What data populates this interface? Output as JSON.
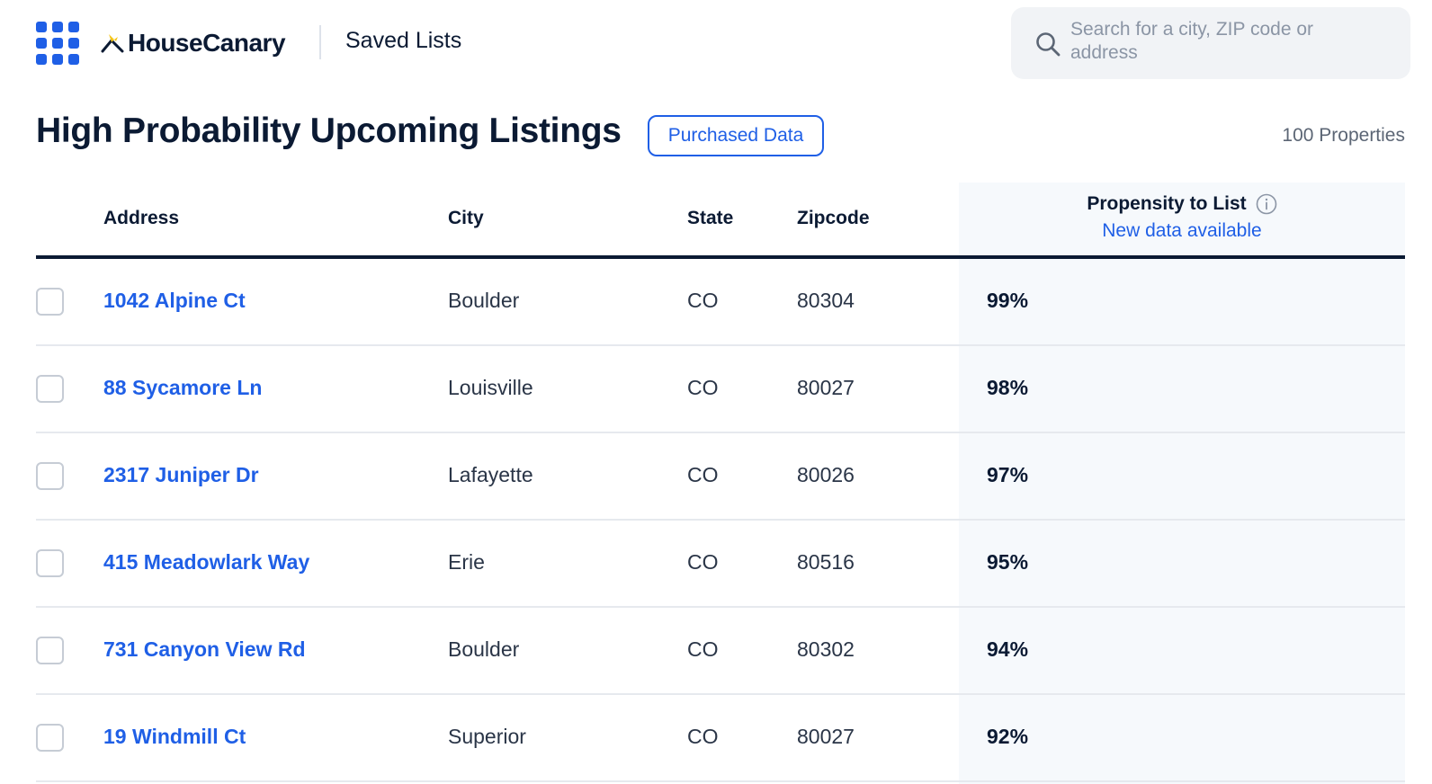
{
  "header": {
    "brand": "HouseCanary",
    "section": "Saved Lists",
    "search_placeholder": "Search for a city, ZIP code or address"
  },
  "list": {
    "title": "High Probability Upcoming Listings",
    "purchased_label": "Purchased Data",
    "count_label": "100 Properties"
  },
  "table": {
    "columns": {
      "address": "Address",
      "city": "City",
      "state": "State",
      "zipcode": "Zipcode",
      "propensity": "Propensity to List",
      "propensity_sub": "New data available"
    },
    "rows": [
      {
        "address": "1042 Alpine Ct",
        "city": "Boulder",
        "state": "CO",
        "zip": "80304",
        "propensity": "99%"
      },
      {
        "address": "88 Sycamore Ln",
        "city": "Louisville",
        "state": "CO",
        "zip": "80027",
        "propensity": "98%"
      },
      {
        "address": "2317 Juniper Dr",
        "city": "Lafayette",
        "state": "CO",
        "zip": "80026",
        "propensity": "97%"
      },
      {
        "address": "415 Meadowlark Way",
        "city": "Erie",
        "state": "CO",
        "zip": "80516",
        "propensity": "95%"
      },
      {
        "address": "731 Canyon View Rd",
        "city": "Boulder",
        "state": "CO",
        "zip": "80302",
        "propensity": "94%"
      },
      {
        "address": "19 Windmill Ct",
        "city": "Superior",
        "state": "CO",
        "zip": "80027",
        "propensity": "92%"
      }
    ]
  },
  "colors": {
    "accent": "#1f5fe6",
    "text": "#0b1a33",
    "column_highlight": "#f6f9fc",
    "logo_accent": "#f5c518"
  },
  "icons": [
    "apps-grid-icon",
    "housecanary-logo-icon",
    "search-icon",
    "info-icon"
  ]
}
